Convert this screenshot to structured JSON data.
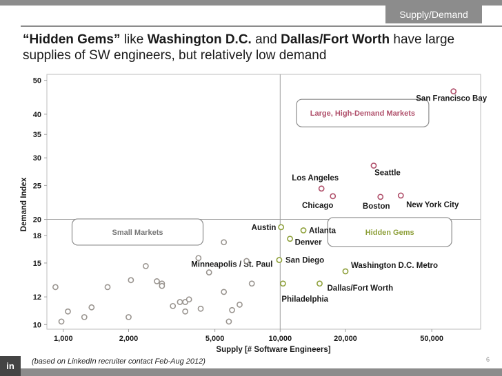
{
  "header": {
    "section_tag": "Supply/Demand",
    "headline_part1": "“Hidden Gems”",
    "headline_part2": " like ",
    "headline_part3": "Washington D.C.",
    "headline_part4": " and ",
    "headline_part5": "Dallas/Fort Worth",
    "headline_part6": " have large supplies of SW engineers, but relatively low demand"
  },
  "footer": {
    "footnote": "(based on LinkedIn recruiter contact Feb-Aug 2012)",
    "page_number": "6",
    "logo_text": "in"
  },
  "colors": {
    "high": "#b0506b",
    "gem": "#8ea03a",
    "small": "#9a9590",
    "grid": "#c8c8c8",
    "text": "#1a1a1a",
    "box_text": "#b0506b",
    "gem_text": "#8ea03a",
    "small_text": "#777777"
  },
  "chart_data": {
    "type": "scatter",
    "title": "",
    "xlabel": "Supply [# Software Engineers]",
    "ylabel": "Demand Index",
    "x_scale": "log",
    "y_scale": "log",
    "xlim": [
      840,
      84000
    ],
    "ylim": [
      9.7,
      52
    ],
    "x_ticks": [
      {
        "value": 1000,
        "label": "1,000"
      },
      {
        "value": 2000,
        "label": "2,000"
      },
      {
        "value": 5000,
        "label": "5,000"
      },
      {
        "value": 10000,
        "label": "10,000"
      },
      {
        "value": 20000,
        "label": "20,000"
      },
      {
        "value": 50000,
        "label": "50,000"
      }
    ],
    "y_ticks": [
      {
        "value": 10,
        "label": "10"
      },
      {
        "value": 12,
        "label": "12"
      },
      {
        "value": 15,
        "label": "15"
      },
      {
        "value": 18,
        "label": "18"
      },
      {
        "value": 20,
        "label": "20"
      },
      {
        "value": 25,
        "label": "25"
      },
      {
        "value": 30,
        "label": "30"
      },
      {
        "value": 35,
        "label": "35"
      },
      {
        "value": 40,
        "label": "40"
      },
      {
        "value": 50,
        "label": "50"
      }
    ],
    "divider_x": 10000,
    "divider_y": 20,
    "quadrant_labels": [
      {
        "text": "Large, High-Demand Markets",
        "group": "high"
      },
      {
        "text": "Small Markets",
        "group": "small"
      },
      {
        "text": "Hidden Gems",
        "group": "gem"
      }
    ],
    "points": [
      {
        "label": "San Francisco Bay",
        "x": 63000,
        "y": 46.5,
        "group": "high"
      },
      {
        "label": "Seattle",
        "x": 27000,
        "y": 28.5,
        "group": "high"
      },
      {
        "label": "Los Angeles",
        "x": 15500,
        "y": 24.5,
        "group": "high"
      },
      {
        "label": "Chicago",
        "x": 17500,
        "y": 23.3,
        "group": "high"
      },
      {
        "label": "Boston",
        "x": 29000,
        "y": 23.2,
        "group": "high"
      },
      {
        "label": "New York City",
        "x": 36000,
        "y": 23.4,
        "group": "high"
      },
      {
        "label": "Austin",
        "x": 10100,
        "y": 19.0,
        "group": "gem"
      },
      {
        "label": "Atlanta",
        "x": 12800,
        "y": 18.6,
        "group": "gem"
      },
      {
        "label": "Denver",
        "x": 11100,
        "y": 17.6,
        "group": "gem"
      },
      {
        "label": "San Diego",
        "x": 9900,
        "y": 15.3,
        "group": "gem"
      },
      {
        "label": "Washington D.C. Metro",
        "x": 20000,
        "y": 14.2,
        "group": "gem"
      },
      {
        "label": "Dallas/Fort Worth",
        "x": 15200,
        "y": 13.1,
        "group": "gem"
      },
      {
        "label": "Philadelphia",
        "x": 10300,
        "y": 13.1,
        "group": "gem"
      },
      {
        "label": "Minneapolis / St. Paul",
        "x": 4700,
        "y": 14.1,
        "group": "small"
      },
      {
        "label": "",
        "x": 920,
        "y": 12.8,
        "group": "small"
      },
      {
        "label": "",
        "x": 1050,
        "y": 10.9,
        "group": "small"
      },
      {
        "label": "",
        "x": 980,
        "y": 10.2,
        "group": "small"
      },
      {
        "label": "",
        "x": 1250,
        "y": 10.5,
        "group": "small"
      },
      {
        "label": "",
        "x": 1350,
        "y": 11.2,
        "group": "small"
      },
      {
        "label": "",
        "x": 1600,
        "y": 12.8,
        "group": "small"
      },
      {
        "label": "",
        "x": 2000,
        "y": 10.5,
        "group": "small"
      },
      {
        "label": "",
        "x": 2050,
        "y": 13.4,
        "group": "small"
      },
      {
        "label": "",
        "x": 2400,
        "y": 14.7,
        "group": "small"
      },
      {
        "label": "",
        "x": 2700,
        "y": 13.3,
        "group": "small"
      },
      {
        "label": "",
        "x": 2850,
        "y": 13.1,
        "group": "small"
      },
      {
        "label": "",
        "x": 2850,
        "y": 12.9,
        "group": "small"
      },
      {
        "label": "",
        "x": 3200,
        "y": 11.3,
        "group": "small"
      },
      {
        "label": "",
        "x": 3450,
        "y": 11.6,
        "group": "small"
      },
      {
        "label": "",
        "x": 3650,
        "y": 11.6,
        "group": "small"
      },
      {
        "label": "",
        "x": 3800,
        "y": 11.8,
        "group": "small"
      },
      {
        "label": "",
        "x": 3650,
        "y": 10.9,
        "group": "small"
      },
      {
        "label": "",
        "x": 4200,
        "y": 15.5,
        "group": "small"
      },
      {
        "label": "",
        "x": 4300,
        "y": 11.1,
        "group": "small"
      },
      {
        "label": "",
        "x": 5500,
        "y": 17.2,
        "group": "small"
      },
      {
        "label": "",
        "x": 5500,
        "y": 12.4,
        "group": "small"
      },
      {
        "label": "",
        "x": 5800,
        "y": 10.2,
        "group": "small"
      },
      {
        "label": "",
        "x": 6000,
        "y": 11.0,
        "group": "small"
      },
      {
        "label": "",
        "x": 6500,
        "y": 11.4,
        "group": "small"
      },
      {
        "label": "",
        "x": 7000,
        "y": 15.2,
        "group": "small"
      },
      {
        "label": "",
        "x": 7400,
        "y": 13.1,
        "group": "small"
      }
    ]
  }
}
